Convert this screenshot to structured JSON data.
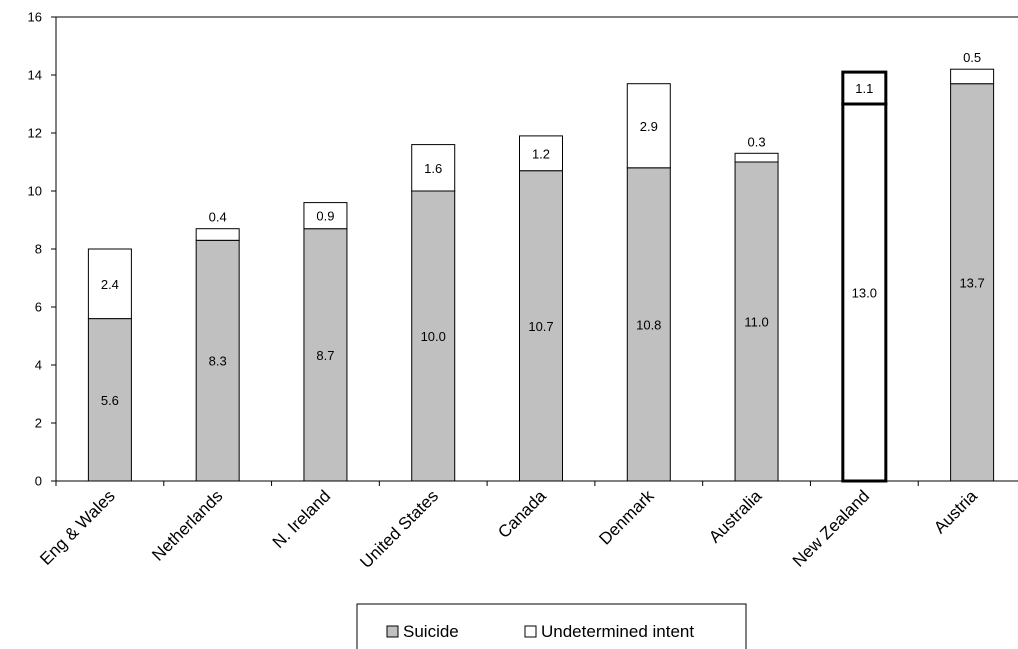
{
  "chart_data": {
    "type": "bar",
    "stacked": true,
    "categories": [
      "Eng & Wales",
      "Netherlands",
      "N. Ireland",
      "United States",
      "Canada",
      "Denmark",
      "Australia",
      "New Zealand",
      "Austria"
    ],
    "series": [
      {
        "name": "Suicide",
        "values": [
          5.6,
          8.3,
          8.7,
          10.0,
          10.7,
          10.8,
          11.0,
          13.0,
          13.7
        ],
        "color": "#c0c0c0"
      },
      {
        "name": "Undetermined intent",
        "values": [
          2.4,
          0.4,
          0.9,
          1.6,
          1.2,
          2.9,
          0.3,
          1.1,
          0.5
        ],
        "color": "#ffffff"
      }
    ],
    "value_labels": {
      "Suicide": [
        "5.6",
        "8.3",
        "8.7",
        "10.0",
        "10.7",
        "10.8",
        "11.0",
        "13.0",
        "13.7"
      ],
      "Undetermined intent": [
        "2.4",
        "0.4",
        "0.9",
        "1.6",
        "1.2",
        "2.9",
        "0.3",
        "1.1",
        "0.5"
      ]
    },
    "highlight": {
      "category": "New Zealand",
      "series_colors": {
        "Suicide": "#ffffff",
        "Undetermined intent": "#ffffff"
      },
      "note": "bar drawn with heavy black outline"
    },
    "y_ticks": [
      0,
      2,
      4,
      6,
      8,
      10,
      12,
      14,
      16
    ],
    "ylim": [
      0,
      16
    ],
    "title": "",
    "xlabel": "",
    "ylabel": "",
    "grid": false,
    "legend_position": "bottom"
  }
}
